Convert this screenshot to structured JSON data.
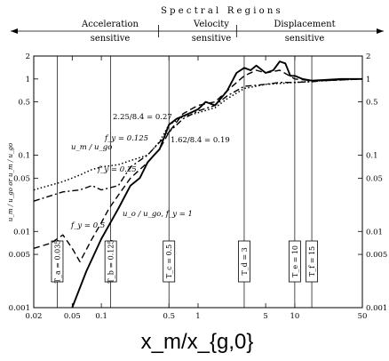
{
  "chart_data": {
    "type": "line",
    "title": "Spectral Regions",
    "regions": [
      {
        "name": "Acceleration",
        "sub": "sensitive"
      },
      {
        "name": "Velocity",
        "sub": "sensitive"
      },
      {
        "name": "Displacement",
        "sub": "sensitive"
      }
    ],
    "xlabel": "x_m/x_{g,0}",
    "ylabel": "u_m / u_go or u_m / u_go",
    "xscale": "log",
    "yscale": "log",
    "xlim": [
      0.02,
      50
    ],
    "ylim": [
      0.001,
      2
    ],
    "x_ticks": [
      {
        "v": 0.02,
        "t": "0.02"
      },
      {
        "v": 0.05,
        "t": "0.05"
      },
      {
        "v": 0.1,
        "t": "0.1"
      },
      {
        "v": 0.5,
        "t": "0.5"
      },
      {
        "v": 1,
        "t": "1"
      },
      {
        "v": 5,
        "t": "5"
      },
      {
        "v": 10,
        "t": "10"
      },
      {
        "v": 50,
        "t": "50"
      }
    ],
    "y_ticks": [
      {
        "v": 2,
        "t": "2"
      },
      {
        "v": 1,
        "t": "1"
      },
      {
        "v": 0.5,
        "t": "0.5"
      },
      {
        "v": 0.1,
        "t": "0.1"
      },
      {
        "v": 0.05,
        "t": "0.05"
      },
      {
        "v": 0.01,
        "t": "0.01"
      },
      {
        "v": 0.005,
        "t": "0.005"
      },
      {
        "v": 0.001,
        "t": "0.001"
      }
    ],
    "region_bounds": [
      0.39,
      2.5
    ],
    "vlines": [
      {
        "x": 0.035,
        "label": "T_a = 0.035"
      },
      {
        "x": 0.125,
        "label": "T_b = 0.125"
      },
      {
        "x": 0.5,
        "label": "T_c = 0.5"
      },
      {
        "x": 3,
        "label": "T_d = 3"
      },
      {
        "x": 10,
        "label": "T_e = 10"
      },
      {
        "x": 15,
        "label": "T_f = 15"
      }
    ],
    "annotations": [
      {
        "text": "2.25/8.4 = 0.27"
      },
      {
        "text": "1.62/8.4 = 0.19"
      },
      {
        "text": "u_m / u_go"
      },
      {
        "text": "f_y = 0.125"
      },
      {
        "text": "f_y = 0.25"
      },
      {
        "text": "f_y = 0.5"
      },
      {
        "text": "u_o / u_go, f_y = 1"
      }
    ],
    "series": [
      {
        "style": "solid",
        "x": [
          0.05,
          0.07,
          0.1,
          0.15,
          0.2,
          0.25,
          0.3,
          0.35,
          0.4,
          0.5,
          0.6,
          0.8,
          1,
          1.2,
          1.5,
          2,
          2.5,
          3,
          3.5,
          4,
          5,
          6,
          7,
          8,
          9,
          10,
          12,
          15,
          20,
          30,
          50
        ],
        "y": [
          0.001,
          0.003,
          0.008,
          0.02,
          0.04,
          0.05,
          0.08,
          0.1,
          0.12,
          0.25,
          0.3,
          0.35,
          0.4,
          0.5,
          0.45,
          0.7,
          1.2,
          1.4,
          1.3,
          1.5,
          1.2,
          1.3,
          1.7,
          1.6,
          1.1,
          1.1,
          1.0,
          0.95,
          0.97,
          1.0,
          1.0
        ]
      },
      {
        "style": "dashed",
        "x": [
          0.02,
          0.03,
          0.04,
          0.05,
          0.06,
          0.08,
          0.1,
          0.12,
          0.15,
          0.2,
          0.3,
          0.4,
          0.5,
          0.7,
          1,
          1.5,
          2,
          3,
          4,
          5,
          7,
          10,
          15,
          20,
          50
        ],
        "y": [
          0.006,
          0.007,
          0.009,
          0.006,
          0.004,
          0.008,
          0.013,
          0.02,
          0.03,
          0.05,
          0.08,
          0.12,
          0.2,
          0.35,
          0.45,
          0.5,
          0.7,
          1.1,
          1.3,
          1.2,
          1.3,
          1.0,
          0.95,
          0.95,
          1.0
        ]
      },
      {
        "style": "dashdot",
        "x": [
          0.02,
          0.04,
          0.06,
          0.08,
          0.1,
          0.15,
          0.2,
          0.3,
          0.5,
          0.7,
          1,
          1.5,
          2,
          3,
          5,
          7,
          10,
          15,
          20,
          50
        ],
        "y": [
          0.025,
          0.033,
          0.035,
          0.04,
          0.035,
          0.04,
          0.07,
          0.1,
          0.2,
          0.3,
          0.38,
          0.45,
          0.6,
          0.8,
          0.85,
          0.9,
          0.9,
          0.92,
          0.95,
          1.0
        ]
      },
      {
        "style": "dotted",
        "x": [
          0.02,
          0.04,
          0.06,
          0.08,
          0.1,
          0.15,
          0.2,
          0.3,
          0.4,
          0.5,
          0.7,
          1,
          1.5,
          2,
          3,
          5,
          10,
          20,
          50
        ],
        "y": [
          0.035,
          0.045,
          0.055,
          0.065,
          0.07,
          0.075,
          0.085,
          0.1,
          0.15,
          0.25,
          0.32,
          0.36,
          0.42,
          0.55,
          0.75,
          0.85,
          0.9,
          0.95,
          1.0
        ]
      }
    ]
  }
}
